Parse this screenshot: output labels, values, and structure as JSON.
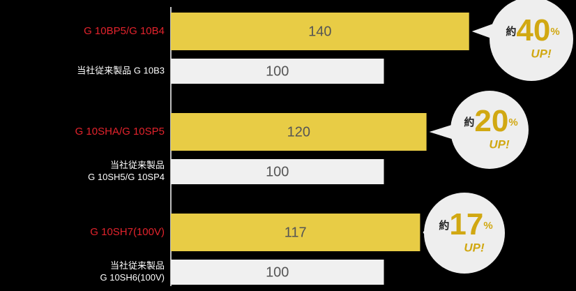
{
  "chart_data": {
    "type": "bar",
    "new_color": "#e8cc45",
    "old_color": "#f0f0f0",
    "new_label_color": "#e3232c",
    "old_label_color": "#ffffff",
    "callout_accent": "#d1a812",
    "groups": [
      {
        "new_name": [
          "G 10BP5/G 10B4"
        ],
        "new_value": 140,
        "old_name": [
          "当社従来製品 G 10B3"
        ],
        "old_value": 100,
        "callout": {
          "prefix": "約",
          "number": 40,
          "unit": "%",
          "suffix": "UP!"
        }
      },
      {
        "new_name": [
          "G 10SHA/G 10SP5"
        ],
        "new_value": 120,
        "old_name": [
          "当社従来製品",
          "G 10SH5/G 10SP4"
        ],
        "old_value": 100,
        "callout": {
          "prefix": "約",
          "number": 20,
          "unit": "%",
          "suffix": "UP!"
        }
      },
      {
        "new_name": [
          "G 10SH7(100V)"
        ],
        "new_value": 117,
        "old_name": [
          "当社従来製品",
          "G 10SH6(100V)"
        ],
        "old_value": 100,
        "callout": {
          "prefix": "約",
          "number": 17,
          "unit": "%",
          "suffix": "UP!"
        }
      }
    ]
  }
}
